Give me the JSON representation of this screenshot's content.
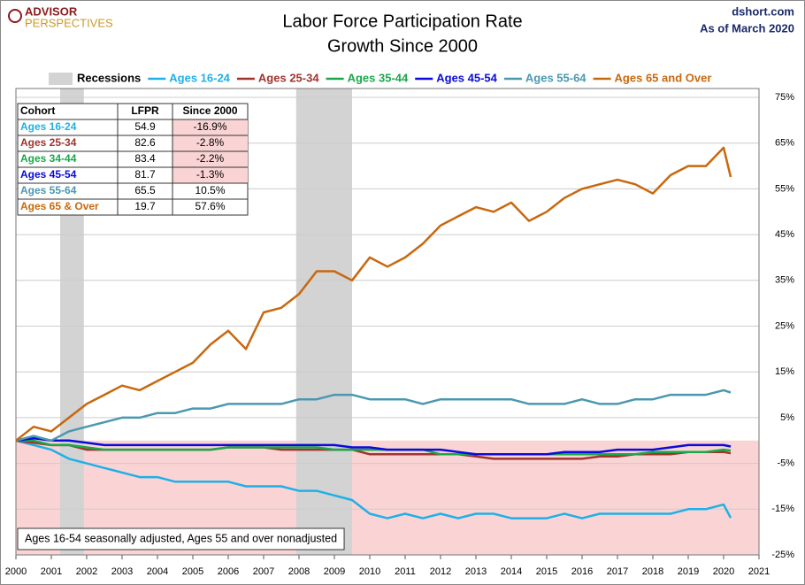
{
  "header": {
    "logo_top": "ADVISOR",
    "logo_bottom": "PERSPECTIVES",
    "site": "dshort.com",
    "as_of": "As of March 2020"
  },
  "table": {
    "header": [
      "Cohort",
      "LFPR",
      "Since 2000"
    ],
    "rows": [
      [
        "Ages 16-24",
        "54.9",
        "-16.9%"
      ],
      [
        "Ages 25-34",
        "82.6",
        "-2.8%"
      ],
      [
        "Ages 34-44",
        "83.4",
        "-2.2%"
      ],
      [
        "Ages 45-54",
        "81.7",
        "-1.3%"
      ],
      [
        "Ages 55-64",
        "65.5",
        "10.5%"
      ],
      [
        "Ages 65  & Over",
        "19.7",
        "57.6%"
      ]
    ]
  },
  "note": "Ages 16-54 seasonally adjusted, Ages 55 and over nonadjusted",
  "chart_data": {
    "type": "line",
    "title": "Labor Force Participation Rate",
    "subtitle": "Growth Since 2000",
    "recession_label": "Recessions",
    "recession_color": "#d3d3d3",
    "recessions": [
      [
        2001.25,
        2001.92
      ],
      [
        2007.92,
        2009.5
      ]
    ],
    "negative_fill": "#fad4d4",
    "x": [
      2000,
      2000.5,
      2001,
      2001.5,
      2002,
      2002.5,
      2003,
      2003.5,
      2004,
      2004.5,
      2005,
      2005.5,
      2006,
      2006.5,
      2007,
      2007.5,
      2008,
      2008.5,
      2009,
      2009.5,
      2010,
      2010.5,
      2011,
      2011.5,
      2012,
      2012.5,
      2013,
      2013.5,
      2014,
      2014.5,
      2015,
      2015.5,
      2016,
      2016.5,
      2017,
      2017.5,
      2018,
      2018.5,
      2019,
      2019.5,
      2020,
      2020.2
    ],
    "series": [
      {
        "name": "Ages 16-24",
        "color": "#1fb0e8",
        "values": [
          0,
          -1,
          -2,
          -4,
          -5,
          -6,
          -7,
          -8,
          -8,
          -9,
          -9,
          -9,
          -9,
          -10,
          -10,
          -10,
          -11,
          -11,
          -12,
          -13,
          -16,
          -17,
          -16,
          -17,
          -16,
          -17,
          -16,
          -16,
          -17,
          -17,
          -17,
          -16,
          -17,
          -16,
          -16,
          -16,
          -16,
          -16,
          -15,
          -15,
          -14,
          -16.9
        ]
      },
      {
        "name": "Ages 25-34",
        "color": "#a0342e",
        "values": [
          0,
          -0.5,
          -1,
          -1,
          -2,
          -2,
          -2,
          -2,
          -2,
          -2,
          -2,
          -2,
          -1.5,
          -1.5,
          -1.5,
          -2,
          -2,
          -2,
          -2,
          -2,
          -3,
          -3,
          -3,
          -3,
          -3,
          -3,
          -3.5,
          -4,
          -4,
          -4,
          -4,
          -4,
          -4,
          -3.5,
          -3.5,
          -3,
          -3,
          -3,
          -2.5,
          -2.5,
          -2.5,
          -2.8
        ]
      },
      {
        "name": "Ages 35-44",
        "color": "#1aa84a",
        "values": [
          0,
          0,
          -1,
          -1,
          -1.5,
          -2,
          -2,
          -2,
          -2,
          -2,
          -2,
          -2,
          -1.5,
          -1.5,
          -1.5,
          -1.5,
          -1.5,
          -1.5,
          -2,
          -2,
          -2,
          -2,
          -2,
          -2,
          -3,
          -3,
          -3,
          -3,
          -3,
          -3,
          -3,
          -3,
          -3,
          -3,
          -3,
          -3,
          -2.5,
          -2.5,
          -2.5,
          -2.5,
          -2,
          -2.2
        ]
      },
      {
        "name": "Ages 45-54",
        "color": "#0a0adc",
        "values": [
          0,
          0.5,
          0,
          0,
          -0.5,
          -1,
          -1,
          -1,
          -1,
          -1,
          -1,
          -1,
          -1,
          -1,
          -1,
          -1,
          -1,
          -1,
          -1,
          -1.5,
          -1.5,
          -2,
          -2,
          -2,
          -2,
          -2.5,
          -3,
          -3,
          -3,
          -3,
          -3,
          -2.5,
          -2.5,
          -2.5,
          -2,
          -2,
          -2,
          -1.5,
          -1,
          -1,
          -1,
          -1.3
        ]
      },
      {
        "name": "Ages 55-64",
        "color": "#4a98b0",
        "values": [
          0,
          1,
          0,
          2,
          3,
          4,
          5,
          5,
          6,
          6,
          7,
          7,
          8,
          8,
          8,
          8,
          9,
          9,
          10,
          10,
          9,
          9,
          9,
          8,
          9,
          9,
          9,
          9,
          9,
          8,
          8,
          8,
          9,
          8,
          8,
          9,
          9,
          10,
          10,
          10,
          11,
          10.5
        ]
      },
      {
        "name": "Ages 65 and Over",
        "color": "#c8680e",
        "values": [
          0,
          3,
          2,
          5,
          8,
          10,
          12,
          11,
          13,
          15,
          17,
          21,
          24,
          20,
          28,
          29,
          32,
          37,
          37,
          35,
          40,
          38,
          40,
          43,
          47,
          49,
          51,
          50,
          52,
          48,
          50,
          53,
          55,
          56,
          57,
          56,
          54,
          58,
          60,
          60,
          64,
          57.6
        ]
      }
    ],
    "xlim": [
      2000,
      2021
    ],
    "xticks": [
      2000,
      2001,
      2002,
      2003,
      2004,
      2005,
      2006,
      2007,
      2008,
      2009,
      2010,
      2011,
      2012,
      2013,
      2014,
      2015,
      2016,
      2017,
      2018,
      2019,
      2020,
      2021
    ],
    "ylim": [
      -25,
      75
    ],
    "yticks": [
      {
        "value": -25,
        "label": "-25%"
      },
      {
        "value": -15,
        "label": "-15%"
      },
      {
        "value": -5,
        "label": "-5%"
      },
      {
        "value": 5,
        "label": "5%"
      },
      {
        "value": 15,
        "label": "15%"
      },
      {
        "value": 25,
        "label": "25%"
      },
      {
        "value": 35,
        "label": "35%"
      },
      {
        "value": 45,
        "label": "45%"
      },
      {
        "value": 55,
        "label": "55%"
      },
      {
        "value": 65,
        "label": "65%"
      },
      {
        "value": 75,
        "label": "75%"
      }
    ],
    "grid": true
  }
}
